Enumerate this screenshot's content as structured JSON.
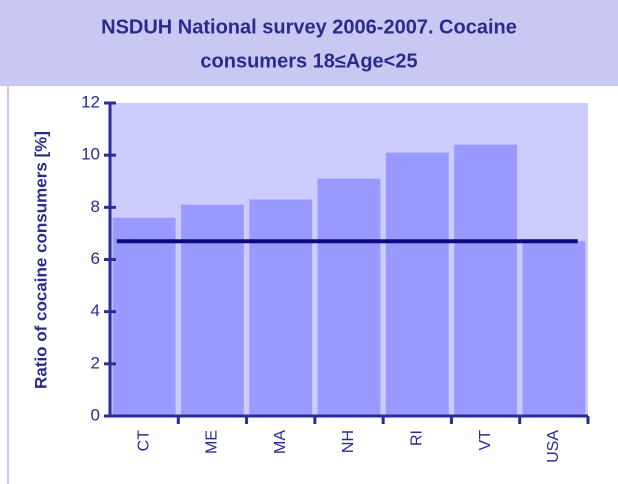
{
  "chart_data": {
    "type": "bar",
    "title": "NSDUH National survey 2006-2007. Cocaine",
    "subtitle": "consumers 18≤Age<25",
    "y_label": "Ratio of cocaine consumers [%]",
    "categories": [
      "CT",
      "ME",
      "MA",
      "NH",
      "RI",
      "VT",
      "USA"
    ],
    "values": [
      7.6,
      8.1,
      8.3,
      9.1,
      10.1,
      10.4,
      6.7
    ],
    "color": "#9999ff",
    "ylim": [
      0,
      12
    ],
    "yticks": [
      0,
      2,
      4,
      6,
      8,
      10,
      12
    ],
    "grid": false
  }
}
